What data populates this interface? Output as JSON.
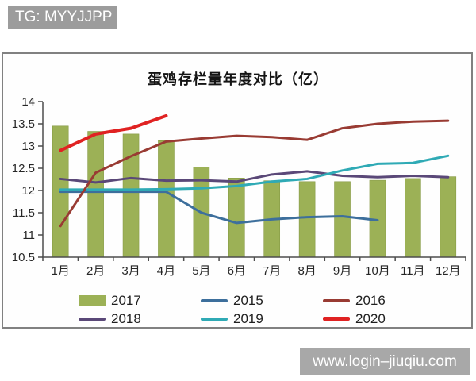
{
  "watermarks": {
    "top_left": "TG: MYYJJPP",
    "bottom_right": "www.login–jiuqiu.com"
  },
  "chart_data": {
    "type": "bar",
    "title": "蛋鸡存栏量年度对比（亿）",
    "categories": [
      "1月",
      "2月",
      "3月",
      "4月",
      "5月",
      "6月",
      "7月",
      "8月",
      "9月",
      "10月",
      "11月",
      "12月"
    ],
    "ylim": [
      10.5,
      14
    ],
    "ytick_step": 0.5,
    "grid": false,
    "legend_position": "bottom",
    "axis_color": "#4d4d4d",
    "tick_label_color": "#262626",
    "series": [
      {
        "name": "2017",
        "type": "bar",
        "color": "#9CB156",
        "edge_color": "#879a45",
        "values": [
          13.45,
          13.33,
          13.27,
          13.12,
          12.53,
          12.28,
          12.22,
          12.2,
          12.2,
          12.23,
          12.27,
          12.31
        ]
      },
      {
        "name": "2018",
        "type": "line",
        "color": "#5A4878",
        "width": 3,
        "values": [
          12.26,
          12.18,
          12.28,
          12.22,
          12.23,
          12.2,
          12.36,
          12.43,
          12.33,
          12.3,
          12.33,
          12.3
        ]
      },
      {
        "name": "2015",
        "type": "line",
        "color": "#3D6F9C",
        "width": 3,
        "values": [
          11.97,
          11.97,
          11.97,
          11.97,
          11.5,
          11.27,
          11.35,
          11.4,
          11.42,
          11.33,
          null,
          null
        ]
      },
      {
        "name": "2019",
        "type": "line",
        "color": "#2FAAB5",
        "width": 3,
        "values": [
          12.02,
          12.02,
          12.02,
          12.03,
          12.05,
          12.1,
          12.2,
          12.26,
          12.45,
          12.6,
          12.62,
          12.78
        ]
      },
      {
        "name": "2016",
        "type": "line",
        "color": "#993B33",
        "width": 3,
        "values": [
          11.2,
          12.4,
          12.77,
          13.1,
          13.17,
          13.23,
          13.2,
          13.14,
          13.4,
          13.5,
          13.55,
          13.57
        ]
      },
      {
        "name": "2020",
        "type": "line",
        "color": "#E02222",
        "width": 4,
        "values": [
          12.9,
          13.27,
          13.4,
          13.68,
          null,
          null,
          null,
          null,
          null,
          null,
          null,
          null
        ]
      }
    ],
    "legend_order": [
      "2017",
      "2015",
      "2016",
      "2018",
      "2019",
      "2020"
    ]
  }
}
